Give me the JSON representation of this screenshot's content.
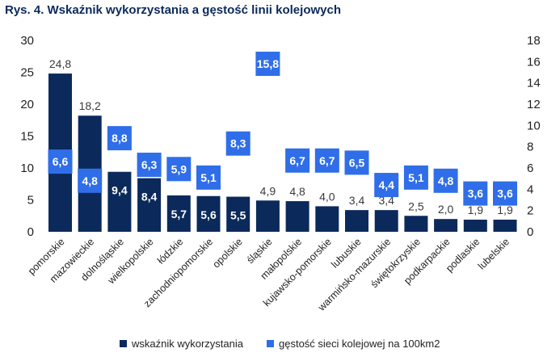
{
  "title": "Rys. 4. Wskaźnik wykorzystania a gęstość linii kolejowych",
  "chart_data": {
    "type": "bar",
    "categories": [
      "pomorskie",
      "mazowieckie",
      "dolnośląskie",
      "wielkopolskie",
      "łódzkie",
      "zachodniopomorskie",
      "opolskie",
      "śląskie",
      "małopolskie",
      "kujawsko-pomorskie",
      "lubuskie",
      "warmińsko-mazurskie",
      "świętokrzyskie",
      "podkarpackie",
      "podlaskie",
      "lubelskie"
    ],
    "series": [
      {
        "name": "wskaźnik wykorzystania",
        "axis": "left",
        "color": "#0b2a5b",
        "values": [
          24.8,
          18.2,
          9.4,
          8.4,
          5.7,
          5.6,
          5.5,
          4.9,
          4.8,
          4.0,
          3.4,
          3.4,
          2.5,
          2.0,
          1.9,
          1.9
        ],
        "labels": [
          "24,8",
          "18,2",
          "9,4",
          "8,4",
          "5,7",
          "5,6",
          "5,5",
          "4,9",
          "4,8",
          "4,0",
          "3,4",
          "3,4",
          "2,5",
          "2,0",
          "1,9",
          "1,9"
        ]
      },
      {
        "name": "gęstość sieci kolejowej na 100km2",
        "axis": "right",
        "color": "#2f6ee8",
        "values": [
          6.6,
          4.8,
          8.8,
          6.3,
          5.9,
          5.1,
          8.3,
          15.8,
          6.7,
          6.7,
          6.5,
          4.4,
          5.1,
          4.8,
          3.6,
          3.6
        ],
        "labels": [
          "6,6",
          "4,8",
          "8,8",
          "6,3",
          "5,9",
          "5,1",
          "8,3",
          "15,8",
          "6,7",
          "6,7",
          "6,5",
          "4,4",
          "5,1",
          "4,8",
          "3,6",
          "3,6"
        ]
      }
    ],
    "ylim_left": [
      0,
      30
    ],
    "yticks_left": [
      "0",
      "5",
      "10",
      "15",
      "20",
      "25",
      "30"
    ],
    "ylim_right": [
      0,
      18
    ],
    "yticks_right": [
      "0",
      "2",
      "4",
      "6",
      "8",
      "10",
      "12",
      "14",
      "16",
      "18"
    ],
    "legend_position": "bottom",
    "grid": false
  }
}
